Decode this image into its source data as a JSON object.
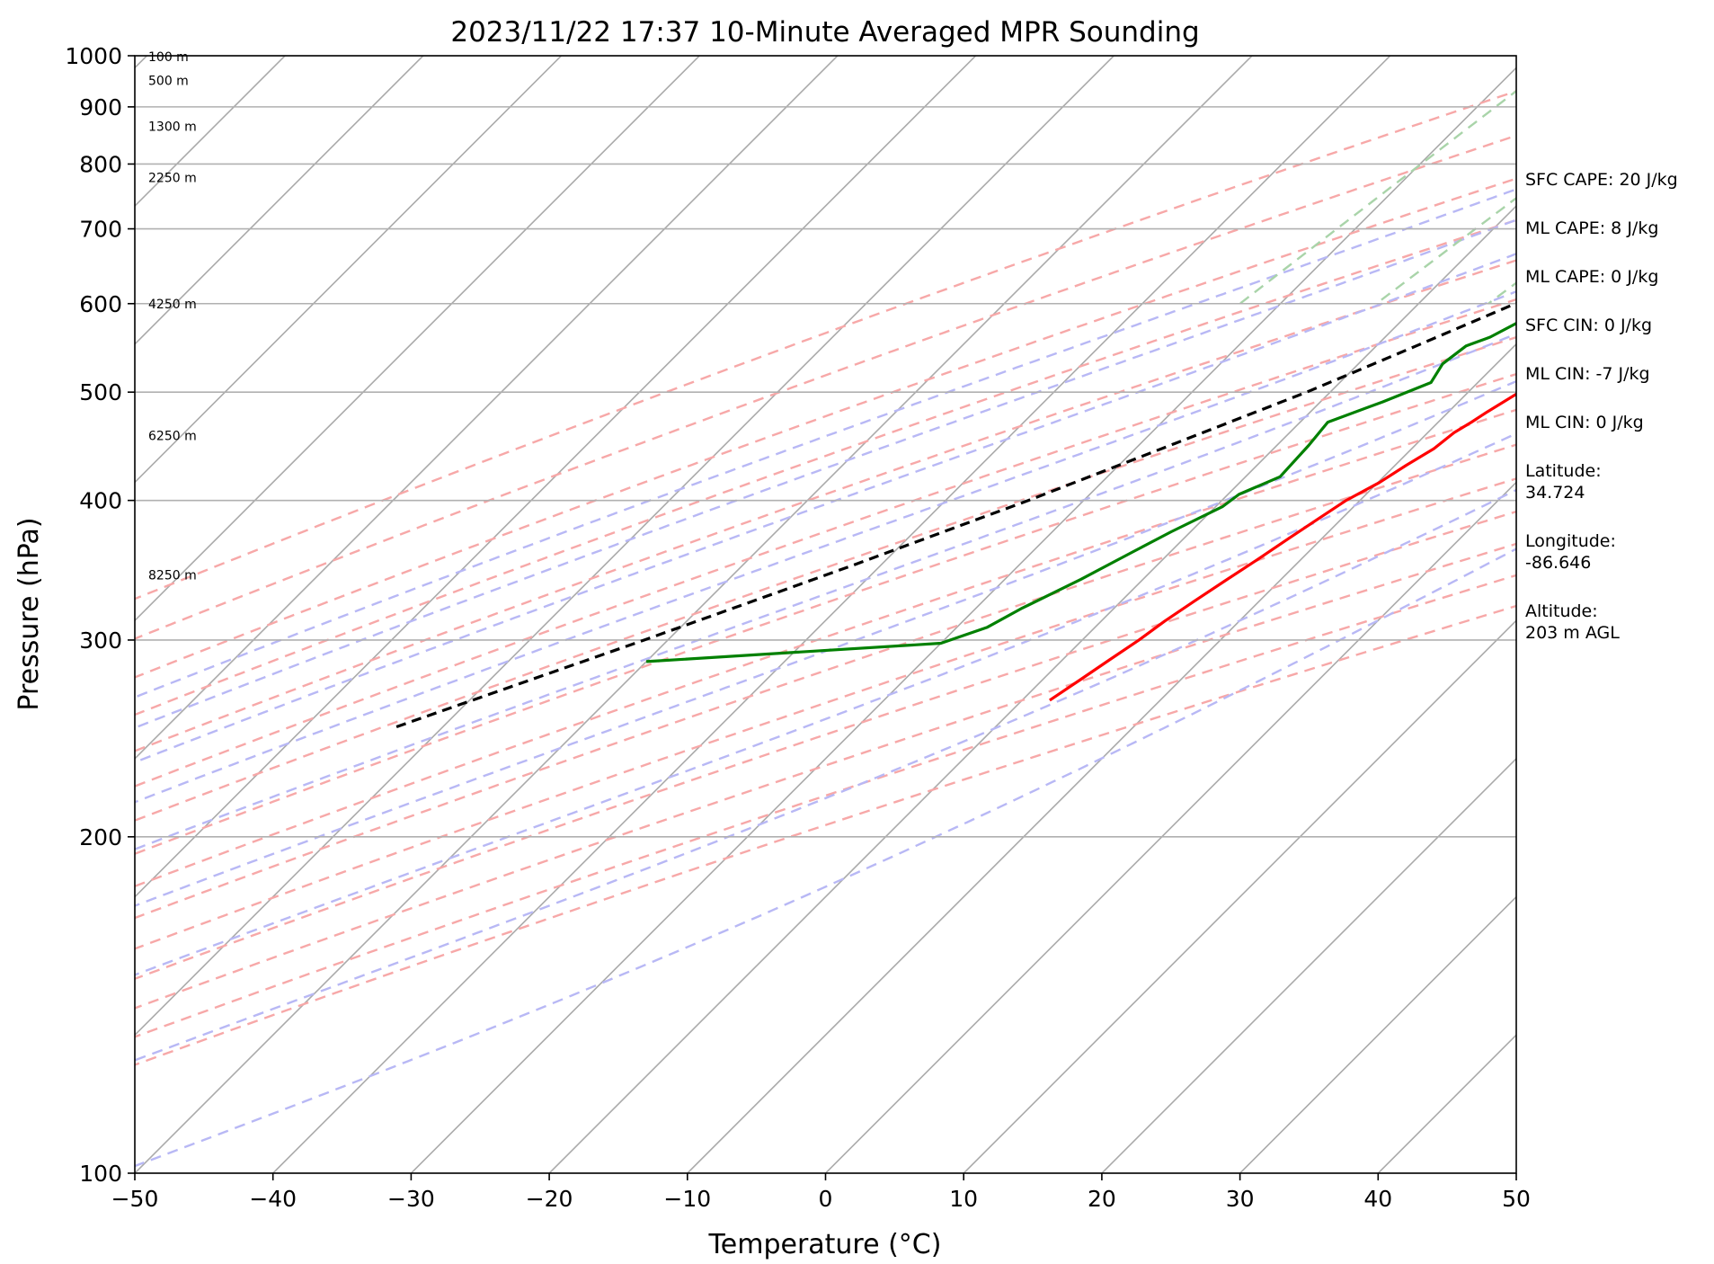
{
  "chart_data": {
    "type": "line",
    "title": "2023/11/22 17:37 10-Minute Averaged MPR Sounding",
    "xlabel": "Temperature (°C)",
    "ylabel": "Pressure (hPa)",
    "xlim": [
      -50,
      50
    ],
    "ylim": [
      1000,
      100
    ],
    "y_scale": "log",
    "x_ticks": [
      -50,
      -40,
      -30,
      -20,
      -10,
      0,
      10,
      20,
      30,
      40,
      50
    ],
    "x_tick_labels": [
      "−50",
      "−40",
      "−30",
      "−20",
      "−10",
      "0",
      "10",
      "20",
      "30",
      "40",
      "50"
    ],
    "y_ticks": [
      1000,
      900,
      800,
      700,
      600,
      500,
      400,
      300,
      200,
      100
    ],
    "y_tick_labels": [
      "1000",
      "900",
      "800",
      "700",
      "600",
      "500",
      "400",
      "300",
      "200",
      "100"
    ],
    "grid": true,
    "skew": "skew-T log-P",
    "series": [
      {
        "color": "#ff0000",
        "style": "solid",
        "pressure": [
          999,
          990,
          980,
          965,
          950,
          940,
          930,
          918,
          905,
          890,
          875,
          860,
          845,
          830,
          815,
          800,
          785,
          770,
          755,
          740,
          720,
          700,
          680,
          660,
          640,
          620,
          600,
          580,
          560,
          540,
          520,
          500,
          480,
          470,
          460,
          445,
          430,
          415,
          400,
          385,
          370,
          355,
          340,
          325,
          312,
          300,
          288,
          276,
          265
        ],
        "temperature": [
          8.0,
          6.9,
          5.8,
          3.6,
          1.6,
          1.0,
          1.1,
          1.5,
          2.2,
          2.4,
          2.6,
          3.2,
          3.5,
          3.9,
          4.1,
          3.6,
          3.9,
          3.7,
          3.2,
          2.9,
          2.4,
          2.0,
          1.7,
          0.6,
          -0.6,
          -1.4,
          -2.1,
          -2.9,
          -3.8,
          -4.7,
          -5.6,
          -6.3,
          -7.2,
          -7.6,
          -8.1,
          -8.4,
          -9.2,
          -9.9,
          -11.0,
          -11.7,
          -12.4,
          -13.1,
          -13.9,
          -14.7,
          -15.4,
          -15.9,
          -16.6,
          -17.3,
          -18.0
        ]
      },
      {
        "color": "#008000",
        "style": "solid",
        "pressure": [
          995,
          990,
          975,
          960,
          950,
          945,
          935,
          925,
          915,
          902,
          890,
          875,
          860,
          845,
          825,
          810,
          798,
          785,
          760,
          745,
          730,
          710,
          690,
          675,
          660,
          645,
          625,
          600,
          580,
          560,
          550,
          530,
          510,
          490,
          470,
          448,
          420,
          405,
          395,
          375,
          360,
          340,
          320,
          308,
          298,
          287
        ],
        "dewpoint": [
          2.8,
          2.0,
          0.9,
          -1.1,
          -1.0,
          -1.3,
          -1.1,
          0.5,
          0.5,
          0.1,
          -1.0,
          -2.7,
          -3.0,
          -4.0,
          -4.7,
          -6.1,
          -7.2,
          -8.4,
          -11.4,
          -10.9,
          -11.0,
          -9.6,
          -9.0,
          -8.4,
          -9.1,
          -9.7,
          -10.2,
          -10.0,
          -11.3,
          -12.4,
          -13.5,
          -13.9,
          -13.4,
          -15.5,
          -18.0,
          -17.7,
          -17.5,
          -19.2,
          -19.5,
          -21.4,
          -22.7,
          -24.5,
          -26.7,
          -27.8,
          -30.0,
          -50.0
        ]
      },
      {
        "color": "#000000",
        "style": "dashed",
        "pressure": [
          999,
          950,
          900,
          850,
          800,
          750,
          700,
          650,
          600,
          550,
          500,
          450,
          400,
          350,
          300,
          250
        ],
        "temperature": [
          8.0,
          3.7,
          1.8,
          0.3,
          -1.6,
          -3.7,
          -6.5,
          -9.5,
          -13.0,
          -17.1,
          -21.7,
          -27.5,
          -34.0,
          -42.0,
          -51.7,
          -63.6
        ]
      }
    ],
    "background_lines": {
      "isotherms_every_c": 10,
      "dry_adiabats_k": [
        250,
        260,
        270,
        280,
        290,
        300,
        310,
        320,
        330,
        340,
        350,
        360,
        370,
        380,
        390
      ],
      "moist_adiabats_c": [
        -5,
        0,
        5,
        10,
        15,
        20,
        25,
        30,
        35
      ],
      "mixing_ratio_lines_gkg": [
        0.4,
        1,
        2,
        3,
        5,
        8,
        12,
        16,
        20,
        28,
        36
      ],
      "colors": {
        "isotherm": "#aaaaaa",
        "dry_adiabat": "#f7a8a8",
        "moist_adiabat": "#b8b8f5",
        "mixing_ratio": "#a9d4a9",
        "grid": "#b0b0b0"
      }
    },
    "height_labels": [
      {
        "pressure": 998,
        "text": "100 m"
      },
      {
        "pressure": 950,
        "text": "500 m"
      },
      {
        "pressure": 865,
        "text": "1300 m"
      },
      {
        "pressure": 778,
        "text": "2250 m"
      },
      {
        "pressure": 600,
        "text": "4250 m"
      },
      {
        "pressure": 457,
        "text": "6250 m"
      },
      {
        "pressure": 343,
        "text": "8250 m"
      }
    ]
  },
  "info_panel": [
    "SFC CAPE: 20 J/kg",
    "ML CAPE: 8 J/kg",
    "ML CAPE: 0 J/kg",
    "SFC CIN: 0 J/kg",
    "ML CIN: -7 J/kg",
    "ML CIN: 0 J/kg",
    "Latitude:\n34.724",
    "Longitude:\n-86.646",
    "Altitude:\n203 m AGL"
  ]
}
